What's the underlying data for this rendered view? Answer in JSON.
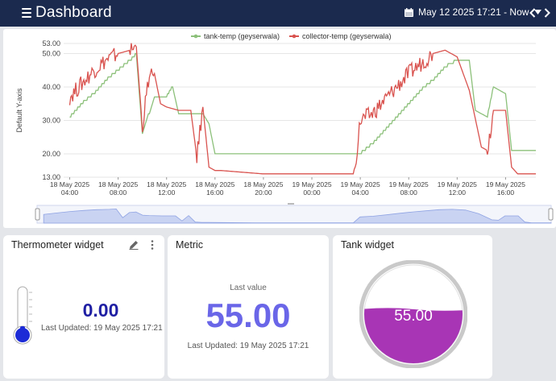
{
  "header": {
    "title": "Dashboard",
    "date_range": "May 12 2025 17:21 - Now"
  },
  "chart_data": {
    "type": "line",
    "ylabel": "Default Y-axis",
    "ylim": [
      13,
      53
    ],
    "y_ticks": [
      "53.00",
      "50.00",
      "40.00",
      "30.00",
      "20.00",
      "13.00"
    ],
    "x_ticks": [
      {
        "date": "18 May 2025",
        "time": "04:00"
      },
      {
        "date": "18 May 2025",
        "time": "08:00"
      },
      {
        "date": "18 May 2025",
        "time": "12:00"
      },
      {
        "date": "18 May 2025",
        "time": "16:00"
      },
      {
        "date": "18 May 2025",
        "time": "20:00"
      },
      {
        "date": "19 May 2025",
        "time": "00:00"
      },
      {
        "date": "19 May 2025",
        "time": "04:00"
      },
      {
        "date": "19 May 2025",
        "time": "08:00"
      },
      {
        "date": "19 May 2025",
        "time": "12:00"
      },
      {
        "date": "19 May 2025",
        "time": "16:00"
      }
    ],
    "legend_position": "top-center",
    "series": [
      {
        "name": "tank-temp  (geyserwala)",
        "color": "#8cc07a",
        "x_hours": [
          0,
          1,
          2,
          3,
          4,
          5,
          5.5,
          6,
          7,
          8,
          8.5,
          9,
          10,
          11,
          11.5,
          12,
          12.5,
          16,
          20,
          24,
          25,
          26,
          27,
          28,
          29,
          30,
          31,
          32,
          33,
          33.5,
          34.5,
          35,
          36,
          36.5,
          37,
          38,
          38.5
        ],
        "values": [
          31,
          35,
          38,
          42,
          45,
          48,
          50,
          26,
          37,
          37,
          40,
          32,
          32,
          32,
          29,
          20,
          20,
          20,
          20,
          20,
          23,
          27,
          31,
          35,
          39,
          42,
          46,
          48,
          48,
          33,
          31,
          40,
          38,
          21,
          21,
          21,
          21
        ]
      },
      {
        "name": "collector-temp  (geyserwala)",
        "color": "#d9534f",
        "x_hours": [
          0,
          1,
          2,
          3,
          4,
          5,
          5.5,
          6,
          6.5,
          7,
          7.5,
          8,
          9,
          10,
          10.5,
          11,
          11.5,
          12,
          12.5,
          16,
          20,
          23.5,
          24,
          25,
          26,
          27,
          28,
          29,
          30,
          31,
          32,
          33,
          34,
          34.5,
          35,
          36,
          36.5,
          37,
          38,
          38.5
        ],
        "values": [
          37,
          41,
          45,
          48,
          50,
          51,
          52,
          28,
          42,
          44,
          35,
          34,
          33,
          33,
          19,
          34,
          16,
          15,
          15,
          14,
          14,
          14,
          30,
          32,
          36,
          40,
          44,
          47,
          50,
          51,
          49,
          39,
          22,
          21,
          33,
          33,
          16,
          14,
          14,
          14
        ]
      }
    ]
  },
  "widgets": {
    "thermometer": {
      "title": "Thermometer widget",
      "value": "0.00",
      "last_updated": "Last Updated: 19 May 2025 17:21",
      "level": 0
    },
    "metric": {
      "title": "Metric",
      "label": "Last value",
      "value": "55.00",
      "last_updated": "Last Updated: 19 May 2025 17:21"
    },
    "tank": {
      "title": "Tank widget",
      "value": "55.00",
      "fill_fraction": 0.55,
      "fill_color": "#a835b5"
    }
  }
}
